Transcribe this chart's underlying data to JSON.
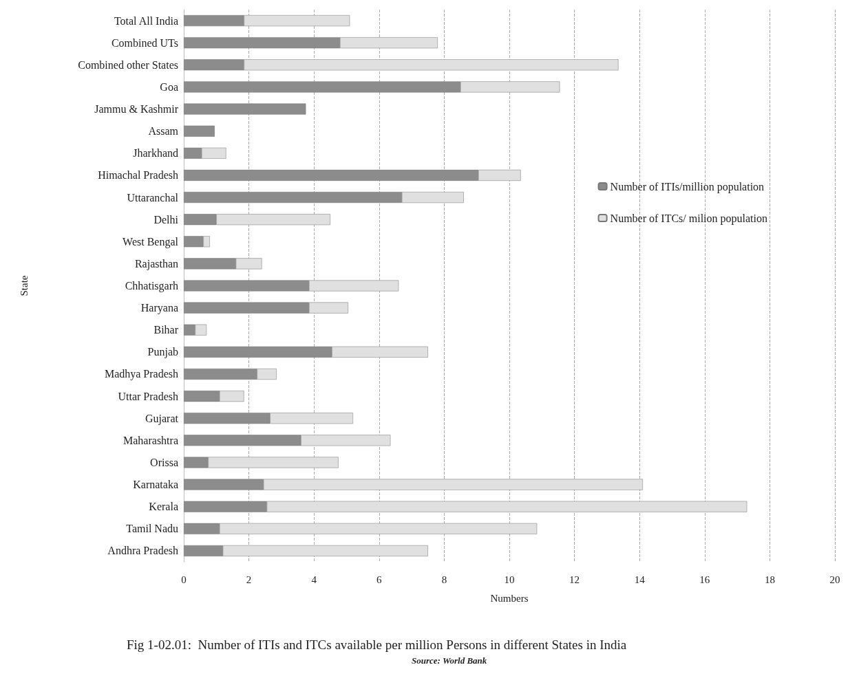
{
  "chart_data": {
    "type": "bar",
    "orientation": "horizontal",
    "stacked": true,
    "title": "Fig 1-02.01:  Number of ITIs and ITCs available per million Persons in different States in India",
    "annotations": [
      "Source: World Bank"
    ],
    "xlabel": "Numbers",
    "ylabel": "State",
    "categories": [
      "Total All India",
      "Combined UTs",
      "Combined other States",
      "Goa",
      "Jammu & Kashmir",
      "Assam",
      "Jharkhand",
      "Himachal Pradesh",
      "Uttaranchal",
      "Delhi",
      "West Bengal",
      "Rajasthan",
      "Chhatisgarh",
      "Haryana",
      "Bihar",
      "Punjab",
      "Madhya Pradesh",
      "Uttar Pradesh",
      "Gujarat",
      "Maharashtra",
      "Orissa",
      "Karnataka",
      "Kerala",
      "Tamil Nadu",
      "Andhra Pradesh"
    ],
    "series": [
      {
        "name": "Number of ITIs/million population",
        "color": "#8c8c8c",
        "values": [
          1.85,
          4.8,
          1.85,
          8.5,
          3.75,
          0.95,
          0.55,
          9.05,
          6.7,
          1.0,
          0.6,
          1.6,
          3.85,
          3.85,
          0.35,
          4.55,
          2.25,
          1.1,
          2.65,
          3.6,
          0.75,
          2.45,
          2.55,
          1.1,
          1.2
        ]
      },
      {
        "name": "Number of ITCs/ milion population",
        "color": "#e0e0e0",
        "values": [
          3.25,
          3.0,
          11.5,
          3.05,
          0,
          0,
          0.75,
          1.3,
          1.9,
          3.5,
          0.2,
          0.8,
          2.75,
          1.2,
          0.35,
          2.95,
          0.6,
          0.75,
          2.55,
          2.75,
          4.0,
          11.65,
          14.75,
          9.75,
          6.3
        ]
      }
    ],
    "xlim": [
      0,
      20
    ],
    "xticks": [
      0,
      2,
      4,
      6,
      8,
      10,
      12,
      14,
      16,
      18,
      20
    ],
    "grid": "x",
    "legend": "right"
  }
}
